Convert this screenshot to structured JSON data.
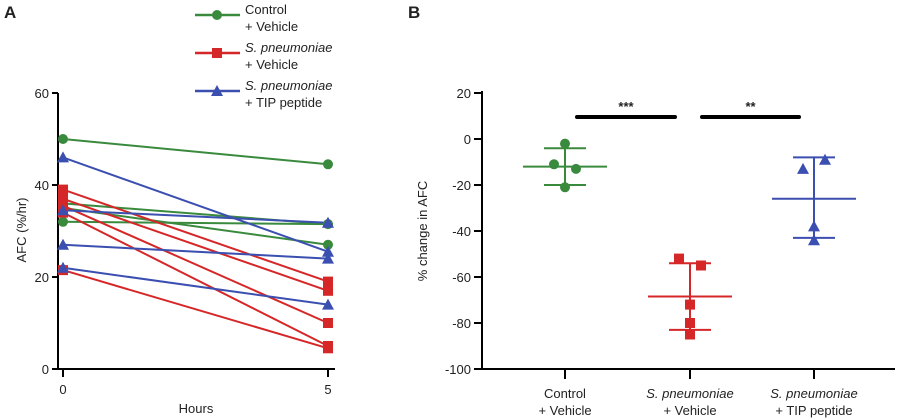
{
  "chart_data": [
    {
      "panel_label": "A",
      "type": "line",
      "xlabel": "Hours",
      "ylabel": "AFC (%/hr)",
      "x": [
        0,
        5
      ],
      "xticks": [
        "0",
        "5"
      ],
      "ylim": [
        0,
        60
      ],
      "yticks": [
        "0",
        "20",
        "40",
        "60"
      ],
      "grid": false,
      "legend_placement": "top",
      "series": [
        {
          "name": "Control\n+ Vehicle",
          "legend_line1": "Control",
          "legend_line2": "+ Vehicle",
          "italic": false,
          "color": "#3a8a3e",
          "marker": "circle",
          "lines": [
            [
              50,
              44.5
            ],
            [
              36,
              31.5
            ],
            [
              35,
              27
            ],
            [
              32,
              31.5
            ]
          ]
        },
        {
          "name": "S. pneumoniae\n+ Vehicle",
          "legend_line1": "S. pneumoniae",
          "legend_line2": "+ Vehicle",
          "italic": true,
          "color": "#d62728",
          "marker": "square",
          "lines": [
            [
              39,
              19
            ],
            [
              37,
              17
            ],
            [
              35.5,
              10
            ],
            [
              34,
              5
            ],
            [
              21.5,
              4.5
            ]
          ]
        },
        {
          "name": "S. pneumoniae\n+ TIP peptide",
          "legend_line1": "S. pneumoniae",
          "legend_line2": "+ TIP peptide",
          "italic": true,
          "color": "#3b4fb0",
          "marker": "triangle",
          "lines": [
            [
              46,
              25.5
            ],
            [
              34.5,
              31.8
            ],
            [
              27,
              24
            ],
            [
              22,
              14
            ]
          ]
        }
      ]
    },
    {
      "panel_label": "B",
      "type": "scatter",
      "ylabel": "% change in AFC",
      "ylim": [
        -100,
        20
      ],
      "yticks": [
        "20",
        "0",
        "-20",
        "-40",
        "-60",
        "-80",
        "-100"
      ],
      "grid": false,
      "categories": [
        {
          "line1": "Control",
          "line2": "+ Vehicle",
          "italic": false,
          "color": "#3a8a3e",
          "marker": "circle",
          "values": [
            -2,
            -11,
            -13,
            -21
          ],
          "mean": -12,
          "sd_low": -20,
          "sd_high": -4
        },
        {
          "line1": "S. pneumoniae",
          "line2": "+ Vehicle",
          "italic": true,
          "color": "#d62728",
          "marker": "square",
          "values": [
            -52,
            -55,
            -72,
            -80,
            -85
          ],
          "mean": -68.5,
          "sd_low": -83,
          "sd_high": -54
        },
        {
          "line1": "S. pneumoniae",
          "line2": "+ TIP peptide",
          "italic": true,
          "color": "#3b4fb0",
          "marker": "triangle",
          "values": [
            -13,
            -9,
            -38,
            -44
          ],
          "mean": -26,
          "sd_low": -43,
          "sd_high": -8
        }
      ],
      "significance": [
        {
          "from": 0,
          "to": 1,
          "label": "***"
        },
        {
          "from": 1,
          "to": 2,
          "label": "**"
        }
      ]
    }
  ]
}
